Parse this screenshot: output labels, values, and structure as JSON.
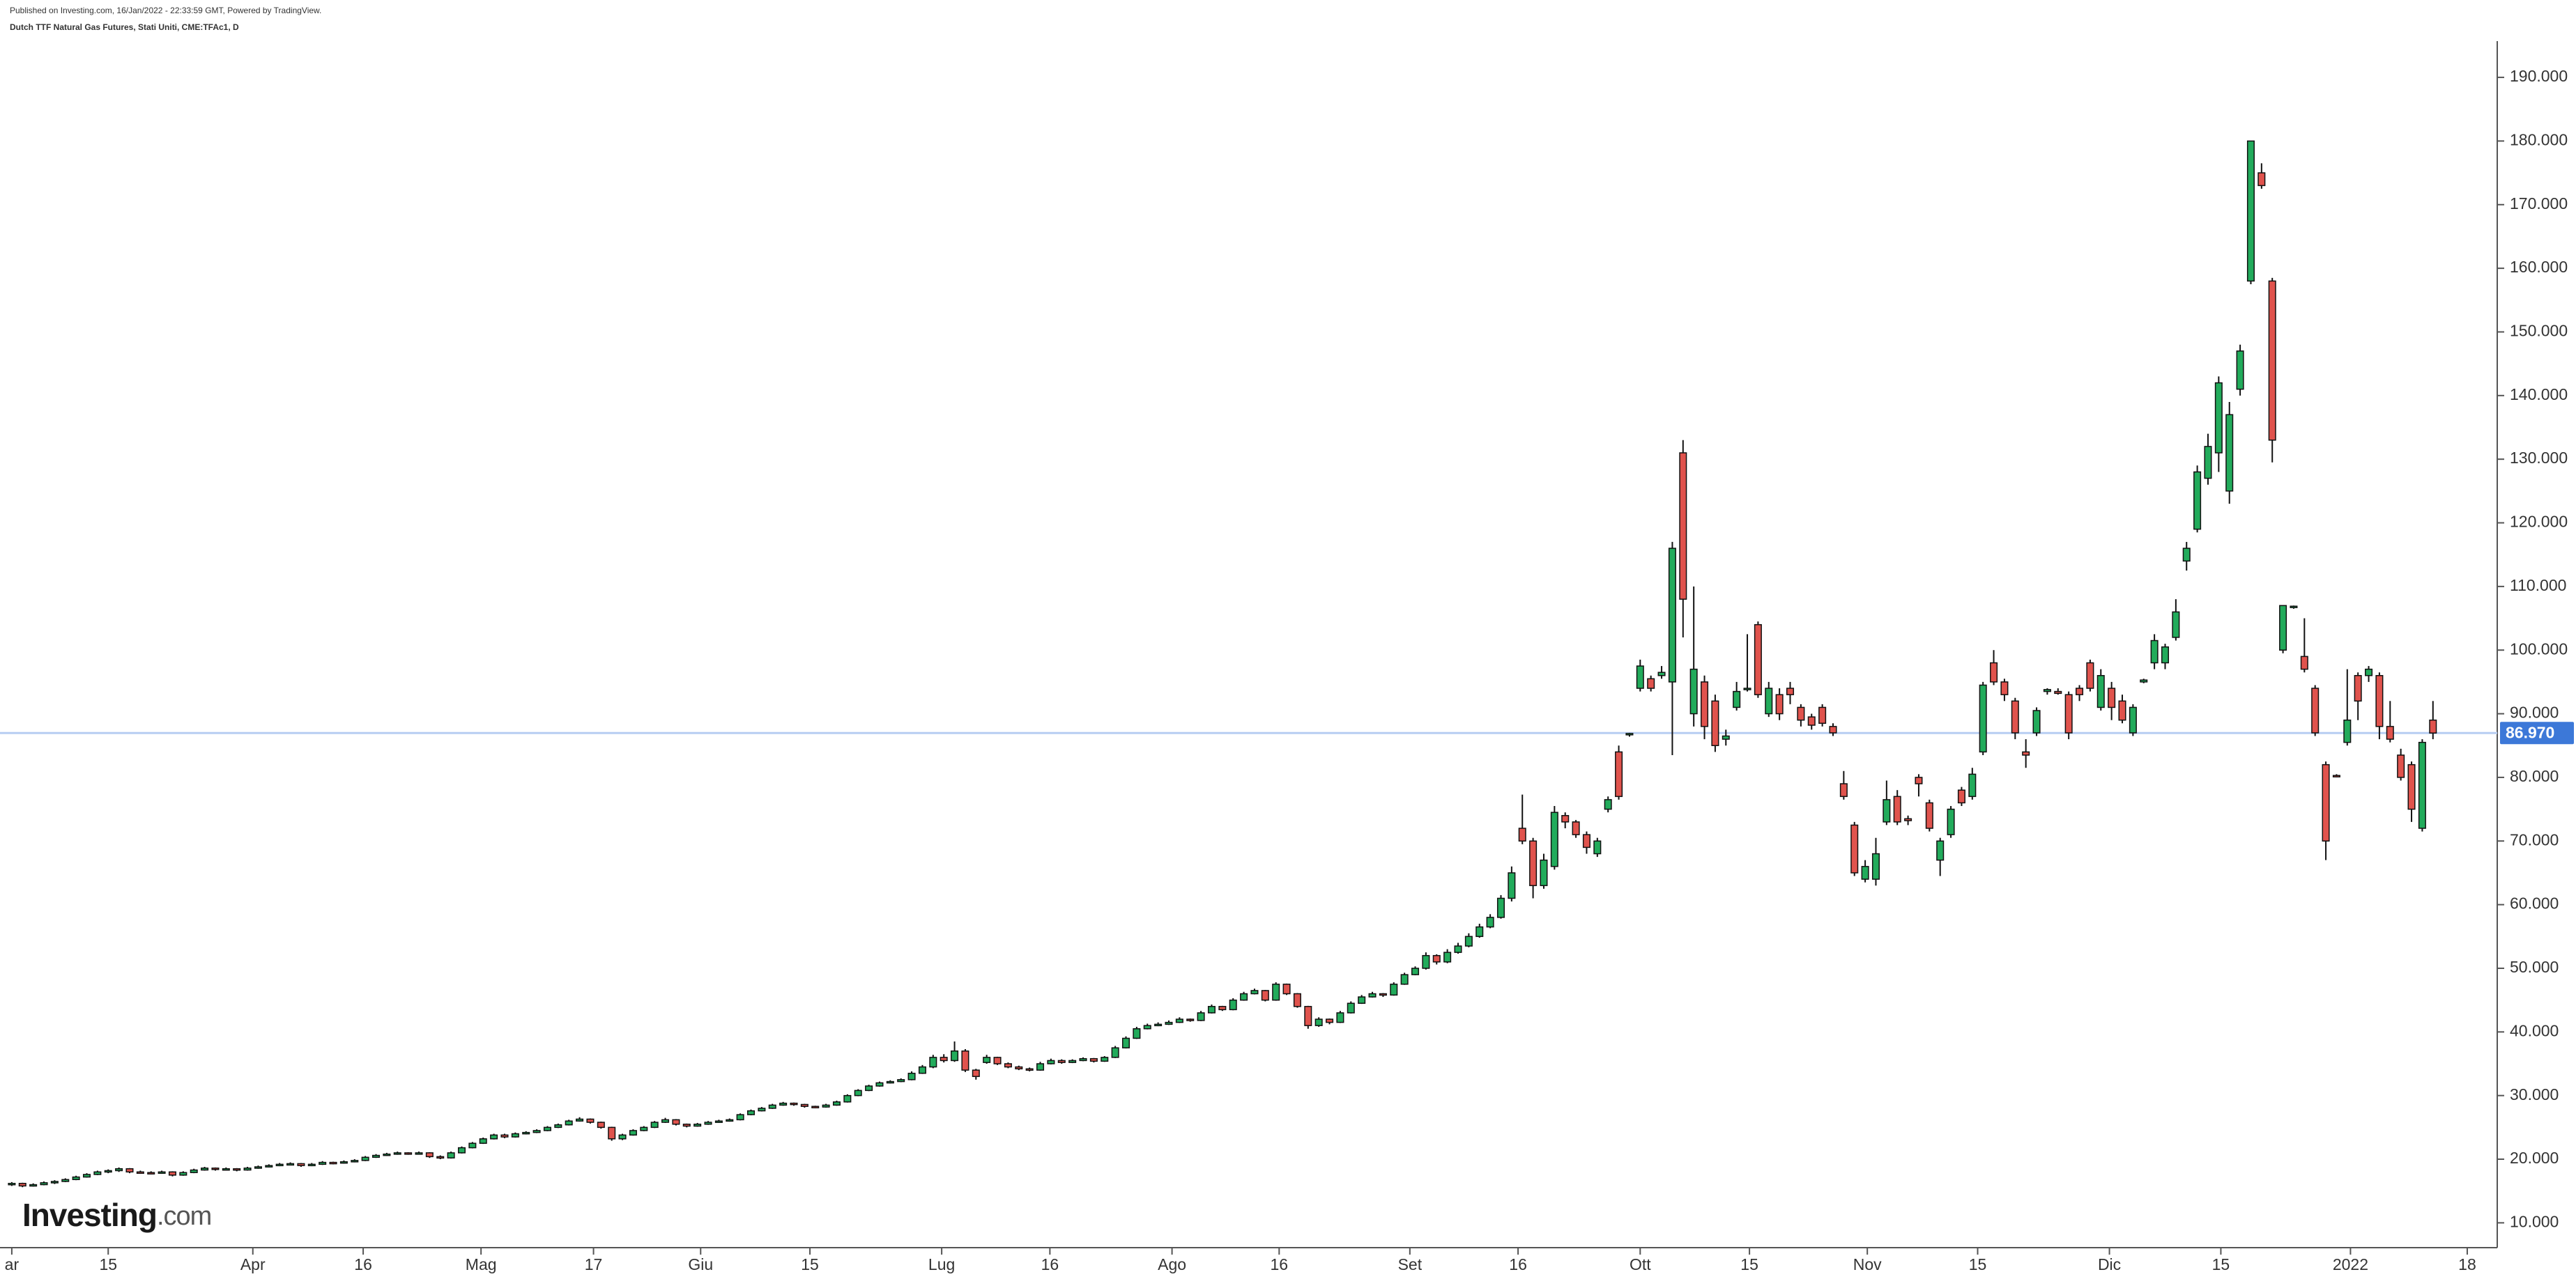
{
  "header": {
    "published": "Published on Investing.com, 16/Jan/2022 - 22:33:59 GMT, Powered by TradingView.",
    "instrument": "Dutch TTF Natural Gas Futures, Stati Uniti, CME:TFAc1, D"
  },
  "logo_name": "Investing",
  "logo_suffix": ".com",
  "chart_data": {
    "type": "candlestick",
    "up_color": "#22ab5b",
    "down_color": "#e0534d",
    "candles": [
      [
        16,
        16.4,
        15.8,
        16.2
      ],
      [
        16.2,
        16.3,
        15.6,
        15.8
      ],
      [
        15.8,
        16.2,
        15.7,
        16
      ],
      [
        16,
        16.5,
        15.9,
        16.3
      ],
      [
        16.3,
        16.7,
        16.1,
        16.5
      ],
      [
        16.5,
        17,
        16.4,
        16.8
      ],
      [
        16.8,
        17.4,
        16.7,
        17.2
      ],
      [
        17.2,
        17.8,
        17.1,
        17.6
      ],
      [
        17.6,
        18.2,
        17.5,
        18
      ],
      [
        18,
        18.4,
        17.8,
        18.2
      ],
      [
        18.2,
        18.7,
        18,
        18.5
      ],
      [
        18.5,
        18.6,
        17.8,
        18
      ],
      [
        18,
        18.2,
        17.7,
        17.9
      ],
      [
        17.9,
        18.1,
        17.6,
        17.8
      ],
      [
        17.8,
        18.2,
        17.7,
        18
      ],
      [
        18,
        18.1,
        17.3,
        17.5
      ],
      [
        17.5,
        18.1,
        17.4,
        17.9
      ],
      [
        17.9,
        18.5,
        17.8,
        18.3
      ],
      [
        18.3,
        18.8,
        18.2,
        18.6
      ],
      [
        18.6,
        18.7,
        18.2,
        18.4
      ],
      [
        18.4,
        18.7,
        18.3,
        18.5
      ],
      [
        18.5,
        18.6,
        18.1,
        18.3
      ],
      [
        18.3,
        18.8,
        18.2,
        18.6
      ],
      [
        18.6,
        19,
        18.5,
        18.8
      ],
      [
        18.8,
        19.2,
        18.7,
        19
      ],
      [
        19,
        19.4,
        18.9,
        19.2
      ],
      [
        19.2,
        19.5,
        19.1,
        19.3
      ],
      [
        19.3,
        19.4,
        18.8,
        19
      ],
      [
        19,
        19.4,
        18.9,
        19.2
      ],
      [
        19.2,
        19.7,
        19.1,
        19.5
      ],
      [
        19.5,
        19.6,
        19.2,
        19.4
      ],
      [
        19.4,
        19.8,
        19.3,
        19.6
      ],
      [
        19.6,
        20,
        19.5,
        19.8
      ],
      [
        19.8,
        20.5,
        19.7,
        20.3
      ],
      [
        20.3,
        20.8,
        20.2,
        20.6
      ],
      [
        20.6,
        21,
        20.5,
        20.8
      ],
      [
        20.8,
        21.2,
        20.7,
        21
      ],
      [
        21,
        21.1,
        20.7,
        20.9
      ],
      [
        20.9,
        21.2,
        20.8,
        21
      ],
      [
        21,
        21.1,
        20.2,
        20.4
      ],
      [
        20.4,
        20.6,
        20,
        20.2
      ],
      [
        20.2,
        21.2,
        20.1,
        21
      ],
      [
        21,
        22,
        20.9,
        21.8
      ],
      [
        21.8,
        22.7,
        21.7,
        22.5
      ],
      [
        22.5,
        23.4,
        22.4,
        23.2
      ],
      [
        23.2,
        24,
        23.1,
        23.8
      ],
      [
        23.8,
        24,
        23.3,
        23.5
      ],
      [
        23.5,
        24.2,
        23.4,
        24
      ],
      [
        24,
        24.4,
        23.9,
        24.2
      ],
      [
        24.2,
        24.7,
        24.1,
        24.5
      ],
      [
        24.5,
        25.2,
        24.4,
        25
      ],
      [
        25,
        25.6,
        24.9,
        25.4
      ],
      [
        25.4,
        26.2,
        25.3,
        26
      ],
      [
        26,
        26.6,
        25.9,
        26.3
      ],
      [
        26.3,
        26.4,
        25.6,
        25.8
      ],
      [
        25.8,
        25.9,
        24.8,
        25
      ],
      [
        25,
        25.1,
        22.9,
        23.2
      ],
      [
        23.2,
        24,
        23,
        23.8
      ],
      [
        23.8,
        24.7,
        23.7,
        24.5
      ],
      [
        24.5,
        25.2,
        24.4,
        25
      ],
      [
        25,
        26,
        24.9,
        25.8
      ],
      [
        25.8,
        26.5,
        25.7,
        26.2
      ],
      [
        26.2,
        26.3,
        25.3,
        25.5
      ],
      [
        25.5,
        25.6,
        25,
        25.2
      ],
      [
        25.2,
        25.7,
        25.1,
        25.5
      ],
      [
        25.5,
        26,
        25.4,
        25.8
      ],
      [
        25.8,
        26.2,
        25.7,
        26
      ],
      [
        26,
        26.4,
        25.9,
        26.2
      ],
      [
        26.2,
        27.2,
        26.1,
        27
      ],
      [
        27,
        27.8,
        26.9,
        27.6
      ],
      [
        27.6,
        28.2,
        27.5,
        28
      ],
      [
        28,
        28.7,
        27.9,
        28.5
      ],
      [
        28.5,
        29,
        28.4,
        28.8
      ],
      [
        28.8,
        28.9,
        28.4,
        28.6
      ],
      [
        28.6,
        28.7,
        28.1,
        28.3
      ],
      [
        28.3,
        28.4,
        28,
        28.2
      ],
      [
        28.2,
        28.7,
        28.1,
        28.5
      ],
      [
        28.5,
        29.2,
        28.4,
        29
      ],
      [
        29,
        30.2,
        28.9,
        30
      ],
      [
        30,
        31,
        29.9,
        30.8
      ],
      [
        30.8,
        31.7,
        30.7,
        31.5
      ],
      [
        31.5,
        32.2,
        31.4,
        32
      ],
      [
        32,
        32.4,
        31.9,
        32.2
      ],
      [
        32.2,
        32.7,
        32.1,
        32.5
      ],
      [
        32.5,
        33.8,
        32.4,
        33.5
      ],
      [
        33.5,
        34.8,
        33.4,
        34.5
      ],
      [
        34.5,
        36.4,
        34.3,
        36
      ],
      [
        36,
        36.5,
        35.2,
        35.5
      ],
      [
        35.5,
        38.5,
        35.3,
        37
      ],
      [
        37,
        37.3,
        33.7,
        34
      ],
      [
        34,
        34.2,
        32.5,
        33
      ],
      [
        35.2,
        36.4,
        35,
        36
      ],
      [
        36,
        36.1,
        34.8,
        35
      ],
      [
        35,
        35.2,
        34.3,
        34.5
      ],
      [
        34.5,
        34.7,
        34,
        34.2
      ],
      [
        34.2,
        34.4,
        33.8,
        34
      ],
      [
        34,
        35.3,
        33.9,
        35
      ],
      [
        35,
        35.8,
        34.9,
        35.5
      ],
      [
        35.5,
        35.7,
        35,
        35.2
      ],
      [
        35.2,
        35.7,
        35.1,
        35.5
      ],
      [
        35.5,
        36,
        35.4,
        35.8
      ],
      [
        35.8,
        35.9,
        35.2,
        35.4
      ],
      [
        35.4,
        36.2,
        35.3,
        36
      ],
      [
        36,
        37.8,
        35.9,
        37.5
      ],
      [
        37.5,
        39.3,
        37.4,
        39
      ],
      [
        39,
        40.8,
        38.9,
        40.5
      ],
      [
        40.5,
        41.3,
        40.4,
        41
      ],
      [
        41,
        41.5,
        40.9,
        41.2
      ],
      [
        41.2,
        41.8,
        41.1,
        41.5
      ],
      [
        41.5,
        42.3,
        41.4,
        42
      ],
      [
        42,
        42.1,
        41.6,
        41.8
      ],
      [
        41.8,
        43.3,
        41.7,
        43
      ],
      [
        43,
        44.3,
        42.9,
        44
      ],
      [
        44,
        44.1,
        43.3,
        43.5
      ],
      [
        43.5,
        45.3,
        43.4,
        45
      ],
      [
        45,
        46.3,
        44.9,
        46
      ],
      [
        46,
        46.8,
        45.9,
        46.5
      ],
      [
        46.5,
        46.6,
        44.8,
        45
      ],
      [
        45,
        47.8,
        44.9,
        47.5
      ],
      [
        47.5,
        47.6,
        45.8,
        46
      ],
      [
        46,
        46.1,
        43.8,
        44
      ],
      [
        44,
        44.1,
        40.5,
        41
      ],
      [
        41,
        42.3,
        40.8,
        42
      ],
      [
        42,
        42.1,
        41.2,
        41.5
      ],
      [
        41.5,
        43.3,
        41.4,
        43
      ],
      [
        43,
        44.8,
        42.9,
        44.5
      ],
      [
        44.5,
        45.8,
        44.4,
        45.5
      ],
      [
        45.5,
        46.3,
        45.4,
        46
      ],
      [
        46,
        46.1,
        45.5,
        45.8
      ],
      [
        45.8,
        47.8,
        45.7,
        47.5
      ],
      [
        47.5,
        49.3,
        47.4,
        49
      ],
      [
        49,
        50.3,
        48.9,
        50
      ],
      [
        50,
        52.5,
        49.8,
        52
      ],
      [
        52,
        52.2,
        50.6,
        51
      ],
      [
        51,
        53,
        50.8,
        52.5
      ],
      [
        52.5,
        54,
        52.3,
        53.5
      ],
      [
        53.5,
        55.5,
        53.3,
        55
      ],
      [
        55,
        57,
        54.8,
        56.5
      ],
      [
        56.5,
        58.5,
        56.3,
        58
      ],
      [
        58,
        61.5,
        57.8,
        61
      ],
      [
        61,
        66,
        60.5,
        65
      ],
      [
        72,
        77.3,
        69.5,
        70
      ],
      [
        70,
        70.5,
        61,
        63
      ],
      [
        63,
        68,
        62.5,
        67
      ],
      [
        66,
        75.5,
        65.5,
        74.5
      ],
      [
        74,
        74.5,
        72,
        73
      ],
      [
        73,
        73.3,
        70.5,
        71
      ],
      [
        71,
        71.5,
        68,
        69
      ],
      [
        68,
        70.5,
        67.5,
        70
      ],
      [
        75,
        77,
        74.5,
        76.5
      ],
      [
        84,
        85,
        76.5,
        77
      ],
      [
        86.7,
        87,
        86.4,
        86.9
      ],
      [
        94,
        98.5,
        93.5,
        97.5
      ],
      [
        95.5,
        96,
        93.5,
        94
      ],
      [
        96,
        97.5,
        95.5,
        96.5
      ],
      [
        95,
        117,
        83.5,
        116
      ],
      [
        131,
        133,
        102,
        108
      ],
      [
        90,
        110,
        88,
        97
      ],
      [
        95,
        96,
        86,
        88
      ],
      [
        92,
        93,
        84,
        85
      ],
      [
        86,
        87.5,
        85,
        86.5
      ],
      [
        91,
        95,
        90.5,
        93.5
      ],
      [
        94,
        102.5,
        93.5,
        94
      ],
      [
        104,
        104.5,
        92.5,
        93
      ],
      [
        90,
        95,
        89.5,
        94
      ],
      [
        93,
        94,
        89,
        90
      ],
      [
        94,
        95,
        91.5,
        93
      ],
      [
        91,
        91.5,
        88,
        89
      ],
      [
        89.5,
        90,
        87.5,
        88.2
      ],
      [
        91,
        91.5,
        88,
        88.5
      ],
      [
        88,
        88.5,
        86.5,
        87
      ],
      [
        79,
        81,
        76.5,
        77
      ],
      [
        72.5,
        73,
        64.5,
        65
      ],
      [
        64,
        67,
        63.5,
        66
      ],
      [
        64,
        70.5,
        63,
        68
      ],
      [
        73,
        79.5,
        72.5,
        76.5
      ],
      [
        77,
        78,
        72.5,
        73
      ],
      [
        73.5,
        74,
        72.5,
        73.2
      ],
      [
        80,
        80.5,
        77,
        79
      ],
      [
        76,
        76.5,
        71.5,
        72
      ],
      [
        67,
        70.5,
        64.5,
        70
      ],
      [
        71,
        75.5,
        70.5,
        75
      ],
      [
        78,
        78.5,
        75.5,
        76
      ],
      [
        77,
        81.5,
        76.5,
        80.5
      ],
      [
        84,
        95,
        83.5,
        94.5
      ],
      [
        98,
        100,
        94.5,
        95
      ],
      [
        95,
        95.5,
        92,
        93
      ],
      [
        92,
        92.5,
        86,
        87
      ],
      [
        84,
        86,
        81.5,
        83.5
      ],
      [
        87,
        91,
        86.5,
        90.5
      ],
      [
        93.5,
        94,
        93,
        93.8
      ],
      [
        93.5,
        94,
        93,
        93.2
      ],
      [
        93,
        93.5,
        86,
        87
      ],
      [
        94,
        94.5,
        92,
        93
      ],
      [
        98,
        98.5,
        93.5,
        94
      ],
      [
        91,
        97,
        90.5,
        96
      ],
      [
        94,
        95,
        89,
        91
      ],
      [
        92,
        93,
        88.5,
        89
      ],
      [
        87,
        91.5,
        86.5,
        91
      ],
      [
        95,
        95.5,
        94.8,
        95.3
      ],
      [
        98,
        102.5,
        97,
        101.5
      ],
      [
        98,
        101,
        97,
        100.5
      ],
      [
        102,
        108,
        101.5,
        106
      ],
      [
        114,
        117,
        112.5,
        116
      ],
      [
        119,
        129,
        118.5,
        128
      ],
      [
        127,
        134,
        126,
        132
      ],
      [
        131,
        143,
        128,
        142
      ],
      [
        125,
        139,
        123,
        137
      ],
      [
        141,
        148,
        140,
        147
      ],
      [
        158,
        180,
        157.5,
        180
      ],
      [
        175,
        176.5,
        172.5,
        173
      ],
      [
        158,
        158.5,
        129.5,
        133
      ],
      [
        100,
        107,
        99.5,
        107
      ],
      [
        106.8,
        107,
        106.5,
        106.9
      ],
      [
        99,
        105,
        96.5,
        97
      ],
      [
        94,
        94.5,
        86.5,
        87
      ],
      [
        82,
        82.5,
        67,
        70
      ],
      [
        80.3,
        80.5,
        80,
        80.2
      ],
      [
        85.5,
        97,
        85,
        89
      ],
      [
        96,
        96.5,
        89,
        92
      ],
      [
        96,
        97.5,
        95,
        97
      ],
      [
        96,
        96.5,
        86,
        88
      ],
      [
        88,
        92,
        85.5,
        86
      ],
      [
        83.5,
        84.5,
        79.5,
        80
      ],
      [
        82,
        82.5,
        73,
        75
      ],
      [
        72,
        86,
        71.5,
        85.5
      ],
      [
        89,
        92,
        86,
        86.97
      ]
    ],
    "xlim": [
      -1.1,
      232
    ],
    "xticks": [
      {
        "value": 0,
        "label": "ar"
      },
      {
        "value": 9,
        "label": "15"
      },
      {
        "value": 22.5,
        "label": "Apr"
      },
      {
        "value": 32.8,
        "label": "16"
      },
      {
        "value": 43.8,
        "label": "Mag"
      },
      {
        "value": 54.3,
        "label": "17"
      },
      {
        "value": 64.3,
        "label": "Giu"
      },
      {
        "value": 74.5,
        "label": "15"
      },
      {
        "value": 86.8,
        "label": "Lug"
      },
      {
        "value": 96.9,
        "label": "16"
      },
      {
        "value": 108.3,
        "label": "Ago"
      },
      {
        "value": 118.3,
        "label": "16"
      },
      {
        "value": 130.5,
        "label": "Set"
      },
      {
        "value": 140.6,
        "label": "16"
      },
      {
        "value": 152,
        "label": "Ott"
      },
      {
        "value": 162.2,
        "label": "15"
      },
      {
        "value": 173.2,
        "label": "Nov"
      },
      {
        "value": 183.5,
        "label": "15"
      },
      {
        "value": 195.8,
        "label": "Dic"
      },
      {
        "value": 206.2,
        "label": "15"
      },
      {
        "value": 218.3,
        "label": "2022"
      },
      {
        "value": 229.2,
        "label": "18"
      }
    ],
    "ylim": [
      6.1,
      195.7
    ],
    "yticks": [
      {
        "value": 10,
        "label": "10.000"
      },
      {
        "value": 20,
        "label": "20.000"
      },
      {
        "value": 30,
        "label": "30.000"
      },
      {
        "value": 40,
        "label": "40.000"
      },
      {
        "value": 50,
        "label": "50.000"
      },
      {
        "value": 60,
        "label": "60.000"
      },
      {
        "value": 70,
        "label": "70.000"
      },
      {
        "value": 80,
        "label": "80.000"
      },
      {
        "value": 90,
        "label": "90.000"
      },
      {
        "value": 100,
        "label": "100.000"
      },
      {
        "value": 110,
        "label": "110.000"
      },
      {
        "value": 120,
        "label": "120.000"
      },
      {
        "value": 130,
        "label": "130.000"
      },
      {
        "value": 140,
        "label": "140.000"
      },
      {
        "value": 150,
        "label": "150.000"
      },
      {
        "value": 160,
        "label": "160.000"
      },
      {
        "value": 170,
        "label": "170.000"
      },
      {
        "value": 180,
        "label": "180.000"
      },
      {
        "value": 190,
        "label": "190.000"
      }
    ],
    "last_price": {
      "value": 86.97,
      "label": "86.970"
    },
    "last_price_color": "#3c78d8",
    "last_line_color": "#b7cdf2"
  }
}
